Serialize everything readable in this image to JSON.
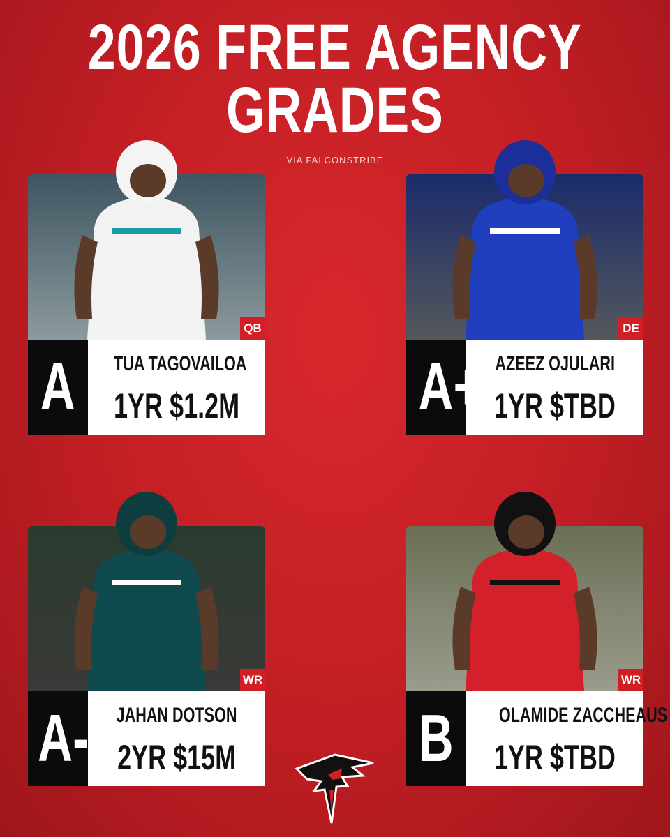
{
  "header": {
    "title_lines": [
      "2026 FREE AGENCY",
      "GRADES"
    ],
    "credit": "VIA FALCONSTRIBE"
  },
  "cards": [
    {
      "grade": "A",
      "position": "QB",
      "name": "TUA TAGOVAILOA",
      "contract": "1YR $1.2M"
    },
    {
      "grade": "A+",
      "position": "DE",
      "name": "AZEEZ OJULARI",
      "contract": "1YR $TBD"
    },
    {
      "grade": "A-",
      "position": "WR",
      "name": "JAHAN DOTSON",
      "contract": "2YR $15M"
    },
    {
      "grade": "B",
      "position": "WR",
      "name": "OLAMIDE ZACCHEAUS",
      "contract": "1YR $TBD"
    }
  ]
}
